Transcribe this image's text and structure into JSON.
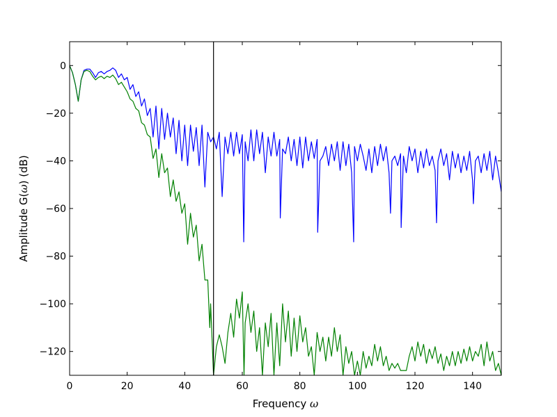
{
  "chart_data": {
    "type": "line",
    "title": "",
    "xlabel": {
      "text": "Frequency ",
      "symbol": "ω"
    },
    "ylabel": {
      "prefix": "Amplitude G(",
      "symbol": "ω",
      "suffix": ") (dB)"
    },
    "xlim": [
      0,
      150
    ],
    "ylim": [
      -130,
      10
    ],
    "xticks": [
      0,
      20,
      40,
      60,
      80,
      100,
      120,
      140
    ],
    "xtick_labels": [
      "0",
      "20",
      "40",
      "60",
      "80",
      "100",
      "120",
      "140"
    ],
    "yticks": [
      0,
      -20,
      -40,
      -60,
      -80,
      -100,
      -120
    ],
    "ytick_labels": [
      "0",
      "−20",
      "−40",
      "−60",
      "−80",
      "−100",
      "−120"
    ],
    "grid": false,
    "legend": "none",
    "vline": {
      "x": 50,
      "color": "#000000"
    },
    "series": [
      {
        "color": "#0000ff",
        "points": [
          [
            0,
            0
          ],
          [
            1,
            -3
          ],
          [
            2,
            -8
          ],
          [
            3,
            -15
          ],
          [
            4,
            -6
          ],
          [
            5,
            -2
          ],
          [
            6,
            -1.5
          ],
          [
            7,
            -1.5
          ],
          [
            8,
            -3
          ],
          [
            9,
            -5
          ],
          [
            10,
            -3
          ],
          [
            11,
            -2.5
          ],
          [
            12,
            -3.5
          ],
          [
            13,
            -2.5
          ],
          [
            14,
            -2
          ],
          [
            15,
            -1
          ],
          [
            16,
            -2
          ],
          [
            17,
            -5
          ],
          [
            18,
            -3.5
          ],
          [
            19,
            -6
          ],
          [
            20,
            -5
          ],
          [
            21,
            -10
          ],
          [
            22,
            -8
          ],
          [
            23,
            -13
          ],
          [
            24,
            -11
          ],
          [
            25,
            -17
          ],
          [
            26,
            -14
          ],
          [
            27,
            -21
          ],
          [
            28,
            -18
          ],
          [
            29,
            -30
          ],
          [
            30,
            -17
          ],
          [
            31,
            -35
          ],
          [
            32,
            -18
          ],
          [
            33,
            -31
          ],
          [
            34,
            -20
          ],
          [
            35,
            -30
          ],
          [
            36,
            -22
          ],
          [
            37,
            -37
          ],
          [
            38,
            -23
          ],
          [
            39,
            -40
          ],
          [
            40,
            -25
          ],
          [
            41,
            -42
          ],
          [
            42,
            -25
          ],
          [
            43,
            -36
          ],
          [
            44,
            -26
          ],
          [
            45,
            -42
          ],
          [
            46,
            -25
          ],
          [
            47,
            -51
          ],
          [
            48,
            -28
          ],
          [
            49,
            -32
          ],
          [
            50,
            -30
          ],
          [
            51,
            -35
          ],
          [
            52,
            -28
          ],
          [
            53,
            -55
          ],
          [
            54,
            -30
          ],
          [
            55,
            -37
          ],
          [
            56,
            -28
          ],
          [
            57,
            -38
          ],
          [
            58,
            -28
          ],
          [
            59,
            -37
          ],
          [
            60,
            -29
          ],
          [
            60.5,
            -74
          ],
          [
            61,
            -32
          ],
          [
            62,
            -40
          ],
          [
            63,
            -27
          ],
          [
            64,
            -40
          ],
          [
            65,
            -27
          ],
          [
            66,
            -37
          ],
          [
            67,
            -28
          ],
          [
            68,
            -45
          ],
          [
            69,
            -30
          ],
          [
            70,
            -38
          ],
          [
            71,
            -28
          ],
          [
            72,
            -38
          ],
          [
            73,
            -31
          ],
          [
            73.2,
            -64
          ],
          [
            74,
            -35
          ],
          [
            75,
            -37
          ],
          [
            76,
            -30
          ],
          [
            77,
            -40
          ],
          [
            78,
            -31
          ],
          [
            79,
            -42
          ],
          [
            80,
            -30
          ],
          [
            81,
            -43
          ],
          [
            82,
            -30
          ],
          [
            83,
            -40
          ],
          [
            84,
            -32
          ],
          [
            85,
            -39
          ],
          [
            86,
            -31
          ],
          [
            86.2,
            -70
          ],
          [
            87,
            -40
          ],
          [
            88,
            -38
          ],
          [
            89,
            -34
          ],
          [
            90,
            -42
          ],
          [
            91,
            -33
          ],
          [
            92,
            -40
          ],
          [
            93,
            -32
          ],
          [
            94,
            -44
          ],
          [
            95,
            -32
          ],
          [
            96,
            -42
          ],
          [
            97,
            -33
          ],
          [
            98,
            -45
          ],
          [
            98.7,
            -74
          ],
          [
            99,
            -34
          ],
          [
            100,
            -40
          ],
          [
            101,
            -33
          ],
          [
            102,
            -38
          ],
          [
            103,
            -44
          ],
          [
            104,
            -35
          ],
          [
            105,
            -45
          ],
          [
            106,
            -34
          ],
          [
            107,
            -42
          ],
          [
            108,
            -33
          ],
          [
            109,
            -40
          ],
          [
            110,
            -34
          ],
          [
            111,
            -45
          ],
          [
            111.5,
            -62
          ],
          [
            112,
            -40
          ],
          [
            113,
            -38
          ],
          [
            114,
            -42
          ],
          [
            115,
            -37
          ],
          [
            115.2,
            -68
          ],
          [
            116,
            -38
          ],
          [
            117,
            -45
          ],
          [
            118,
            -34
          ],
          [
            119,
            -40
          ],
          [
            120,
            -35
          ],
          [
            121,
            -45
          ],
          [
            122,
            -36
          ],
          [
            123,
            -43
          ],
          [
            124,
            -35
          ],
          [
            125,
            -42
          ],
          [
            126,
            -38
          ],
          [
            127,
            -44
          ],
          [
            127.5,
            -66
          ],
          [
            128,
            -40
          ],
          [
            129,
            -35
          ],
          [
            130,
            -42
          ],
          [
            131,
            -37
          ],
          [
            132,
            -48
          ],
          [
            133,
            -36
          ],
          [
            134,
            -43
          ],
          [
            135,
            -37
          ],
          [
            136,
            -45
          ],
          [
            137,
            -38
          ],
          [
            138,
            -44
          ],
          [
            139,
            -36
          ],
          [
            140,
            -48
          ],
          [
            140.3,
            -58
          ],
          [
            141,
            -40
          ],
          [
            142,
            -38
          ],
          [
            143,
            -45
          ],
          [
            144,
            -37
          ],
          [
            145,
            -44
          ],
          [
            146,
            -36
          ],
          [
            147,
            -48
          ],
          [
            148,
            -38
          ],
          [
            149,
            -45
          ],
          [
            150,
            -53
          ]
        ]
      },
      {
        "color": "#008000",
        "points": [
          [
            0,
            0
          ],
          [
            1,
            -3
          ],
          [
            2,
            -8
          ],
          [
            3,
            -15
          ],
          [
            4,
            -6
          ],
          [
            5,
            -2.5
          ],
          [
            6,
            -2
          ],
          [
            7,
            -2.5
          ],
          [
            8,
            -4.5
          ],
          [
            9,
            -6
          ],
          [
            10,
            -5
          ],
          [
            11,
            -4.5
          ],
          [
            12,
            -5.5
          ],
          [
            13,
            -4.5
          ],
          [
            14,
            -5
          ],
          [
            15,
            -4
          ],
          [
            16,
            -5.5
          ],
          [
            17,
            -8
          ],
          [
            18,
            -7
          ],
          [
            19,
            -9
          ],
          [
            20,
            -11
          ],
          [
            21,
            -14
          ],
          [
            22,
            -15
          ],
          [
            23,
            -18
          ],
          [
            24,
            -19
          ],
          [
            25,
            -24
          ],
          [
            26,
            -25
          ],
          [
            27,
            -29
          ],
          [
            28,
            -30
          ],
          [
            29,
            -39
          ],
          [
            30,
            -35
          ],
          [
            31,
            -47
          ],
          [
            32,
            -37
          ],
          [
            33,
            -45
          ],
          [
            34,
            -43
          ],
          [
            35,
            -55
          ],
          [
            36,
            -48
          ],
          [
            37,
            -57
          ],
          [
            38,
            -53
          ],
          [
            39,
            -62
          ],
          [
            40,
            -58
          ],
          [
            41,
            -75
          ],
          [
            42,
            -62
          ],
          [
            43,
            -72
          ],
          [
            44,
            -67
          ],
          [
            45,
            -82
          ],
          [
            46,
            -75
          ],
          [
            47,
            -90
          ],
          [
            48,
            -90
          ],
          [
            48.7,
            -110
          ],
          [
            49,
            -100
          ],
          [
            50,
            -130
          ],
          [
            51,
            -118
          ],
          [
            52,
            -113
          ],
          [
            53,
            -118
          ],
          [
            54,
            -125
          ],
          [
            55,
            -112
          ],
          [
            56,
            -104
          ],
          [
            57,
            -114
          ],
          [
            58,
            -98
          ],
          [
            59,
            -106
          ],
          [
            60,
            -95
          ],
          [
            60.6,
            -130
          ],
          [
            61,
            -108
          ],
          [
            62,
            -100
          ],
          [
            63,
            -112
          ],
          [
            64,
            -103
          ],
          [
            65,
            -120
          ],
          [
            66,
            -110
          ],
          [
            67,
            -130
          ],
          [
            68,
            -108
          ],
          [
            69,
            -118
          ],
          [
            70,
            -104
          ],
          [
            71,
            -130
          ],
          [
            72,
            -108
          ],
          [
            73,
            -126
          ],
          [
            74,
            -100
          ],
          [
            75,
            -116
          ],
          [
            76,
            -103
          ],
          [
            77,
            -122
          ],
          [
            78,
            -106
          ],
          [
            79,
            -120
          ],
          [
            80,
            -105
          ],
          [
            81,
            -116
          ],
          [
            82,
            -110
          ],
          [
            83,
            -122
          ],
          [
            84,
            -118
          ],
          [
            85,
            -130
          ],
          [
            86,
            -112
          ],
          [
            87,
            -120
          ],
          [
            88,
            -114
          ],
          [
            89,
            -124
          ],
          [
            90,
            -114
          ],
          [
            91,
            -122
          ],
          [
            92,
            -110
          ],
          [
            93,
            -120
          ],
          [
            94,
            -113
          ],
          [
            95,
            -130
          ],
          [
            96,
            -118
          ],
          [
            97,
            -125
          ],
          [
            98,
            -120
          ],
          [
            99,
            -130
          ],
          [
            100,
            -124
          ],
          [
            101,
            -130
          ],
          [
            102,
            -120
          ],
          [
            103,
            -127
          ],
          [
            104,
            -122
          ],
          [
            105,
            -126
          ],
          [
            106,
            -117
          ],
          [
            107,
            -124
          ],
          [
            108,
            -118
          ],
          [
            109,
            -126
          ],
          [
            110,
            -122
          ],
          [
            111,
            -128
          ],
          [
            112,
            -125
          ],
          [
            113,
            -127
          ],
          [
            114,
            -125
          ],
          [
            115,
            -128
          ],
          [
            116,
            -128
          ],
          [
            117,
            -128
          ],
          [
            118,
            -122
          ],
          [
            119,
            -118
          ],
          [
            120,
            -124
          ],
          [
            121,
            -116
          ],
          [
            122,
            -122
          ],
          [
            123,
            -117
          ],
          [
            124,
            -125
          ],
          [
            125,
            -119
          ],
          [
            126,
            -123
          ],
          [
            127,
            -118
          ],
          [
            128,
            -125
          ],
          [
            129,
            -121
          ],
          [
            130,
            -128
          ],
          [
            131,
            -122
          ],
          [
            132,
            -126
          ],
          [
            133,
            -120
          ],
          [
            134,
            -126
          ],
          [
            135,
            -120
          ],
          [
            136,
            -125
          ],
          [
            137,
            -119
          ],
          [
            138,
            -124
          ],
          [
            139,
            -118
          ],
          [
            140,
            -124
          ],
          [
            141,
            -120
          ],
          [
            142,
            -122
          ],
          [
            143,
            -117
          ],
          [
            144,
            -126
          ],
          [
            145,
            -116
          ],
          [
            146,
            -124
          ],
          [
            147,
            -120
          ],
          [
            148,
            -128
          ],
          [
            149,
            -125
          ],
          [
            150,
            -130
          ]
        ]
      }
    ]
  }
}
